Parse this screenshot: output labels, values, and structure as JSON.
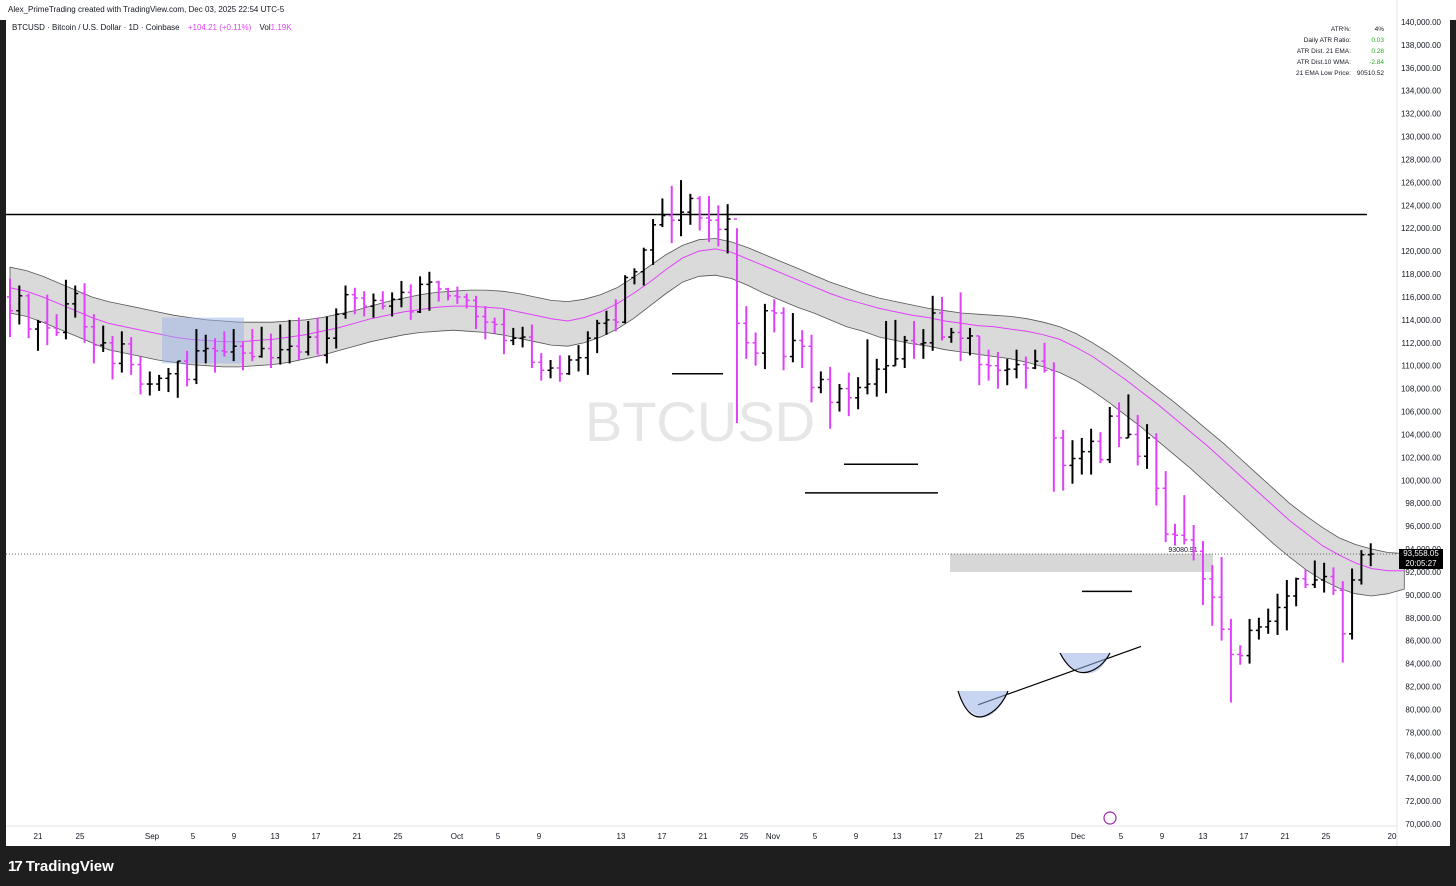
{
  "header": {
    "attribution": "Alex_PrimeTrading created with TradingView.com, Dec 03, 2025 22:54 UTC-5"
  },
  "legend": {
    "symbol_line": "BTCUSD · Bitcoin / U.S. Dollar · 1D · Coinbase",
    "change": "+104.21 (+0.11%)",
    "vol_label": "Vol",
    "vol_value": "1.19K"
  },
  "watermark": "BTCUSD",
  "atr_table": [
    {
      "label": "ATR%:",
      "value": "4%",
      "color": "#131722"
    },
    {
      "label": "Daily ATR Ratio:",
      "value": "0.03",
      "color": "#22ab22"
    },
    {
      "label": "ATR Dist. 21 EMA:",
      "value": "0.28",
      "color": "#22ab22"
    },
    {
      "label": "ATR Dist.10 WMA:",
      "value": "-2.84",
      "color": "#22ab22"
    },
    {
      "label": "21 EMA Low Price:",
      "value": "90510.52",
      "color": "#131722"
    }
  ],
  "price_tags": {
    "last_price": "93,558.05",
    "countdown": "20:05:27",
    "level_label": "93080.91"
  },
  "footer": {
    "brand": "TradingView",
    "brand_mark": "17"
  },
  "colors": {
    "bull": "#000000",
    "bear": "#e040fb",
    "band": "#c8c8c8",
    "ema": "#e040fb",
    "box": "#9bb3e8"
  },
  "chart_data": {
    "type": "ohlc",
    "y_axis": {
      "ticks": [
        "140,000.00",
        "138,000.00",
        "136,000.00",
        "134,000.00",
        "132,000.00",
        "130,000.00",
        "128,000.00",
        "126,000.00",
        "124,000.00",
        "122,000.00",
        "120,000.00",
        "118,000.00",
        "116,000.00",
        "114,000.00",
        "112,000.00",
        "110,000.00",
        "108,000.00",
        "106,000.00",
        "104,000.00",
        "102,000.00",
        "100,000.00",
        "98,000.00",
        "96,000.00",
        "94,000.00",
        "92,000.00",
        "90,000.00",
        "88,000.00",
        "86,000.00",
        "84,000.00",
        "82,000.00",
        "80,000.00",
        "78,000.00",
        "76,000.00",
        "74,000.00",
        "72,000.00",
        "70,000.00"
      ],
      "ylim": [
        70000,
        140000
      ]
    },
    "x_axis": {
      "labels": [
        "21",
        "25",
        "Sep",
        "5",
        "9",
        "13",
        "17",
        "21",
        "25",
        "Oct",
        "5",
        "9",
        "13",
        "17",
        "21",
        "25",
        "Nov",
        "5",
        "9",
        "13",
        "17",
        "21",
        "25",
        "Dec",
        "5",
        "9",
        "13",
        "17",
        "21",
        "25",
        "20"
      ]
    },
    "bars": [
      [
        116000,
        117600,
        112500,
        114800
      ],
      [
        114800,
        117000,
        113600,
        116100
      ],
      [
        116100,
        116300,
        112400,
        113200
      ],
      [
        113200,
        114000,
        111300,
        113800
      ],
      [
        113800,
        116200,
        111800,
        113300
      ],
      [
        113300,
        114500,
        112600,
        112900
      ],
      [
        112900,
        117500,
        112300,
        115400
      ],
      [
        115400,
        117000,
        114200,
        116300
      ],
      [
        116300,
        117200,
        112000,
        113400
      ],
      [
        113400,
        114500,
        110200,
        111800
      ],
      [
        111800,
        113500,
        111200,
        112000
      ],
      [
        112000,
        112600,
        108800,
        110200
      ],
      [
        110200,
        113000,
        109400,
        111900
      ],
      [
        111900,
        112500,
        109200,
        110100
      ],
      [
        110100,
        110800,
        107500,
        108400
      ],
      [
        108400,
        109500,
        107400,
        108400
      ],
      [
        108400,
        109200,
        107800,
        108900
      ],
      [
        108900,
        109800,
        107700,
        109300
      ],
      [
        109300,
        110400,
        107200,
        110400
      ],
      [
        110400,
        111300,
        108200,
        108800
      ],
      [
        108800,
        113200,
        108400,
        111300
      ],
      [
        111300,
        112700,
        110200,
        111500
      ],
      [
        111500,
        112400,
        109400,
        111300
      ],
      [
        111300,
        113000,
        110800,
        111200
      ],
      [
        111200,
        113200,
        110400,
        111700
      ],
      [
        111700,
        112100,
        109600,
        111100
      ],
      [
        111100,
        113200,
        110400,
        110800
      ],
      [
        110800,
        113400,
        110700,
        111500
      ],
      [
        111500,
        112800,
        109800,
        110700
      ],
      [
        110700,
        113600,
        110100,
        111400
      ],
      [
        111400,
        114000,
        110200,
        111700
      ],
      [
        111700,
        114200,
        110500,
        111200
      ],
      [
        111200,
        113900,
        110900,
        112500
      ],
      [
        112500,
        114200,
        111000,
        110900
      ],
      [
        110900,
        114300,
        110200,
        112400
      ],
      [
        112400,
        115000,
        111500,
        114500
      ],
      [
        114500,
        117000,
        114100,
        116200
      ],
      [
        116200,
        116800,
        114500,
        115900
      ],
      [
        115900,
        116500,
        114300,
        115200
      ],
      [
        115200,
        116300,
        114200,
        115700
      ],
      [
        115700,
        116500,
        114900,
        115200
      ],
      [
        115200,
        116400,
        114300,
        115800
      ],
      [
        115800,
        117400,
        115100,
        116400
      ],
      [
        116400,
        117100,
        114000,
        114700
      ],
      [
        114700,
        117800,
        114600,
        117100
      ],
      [
        117100,
        118200,
        114800,
        117300
      ],
      [
        117300,
        117400,
        115600,
        116700
      ],
      [
        116700,
        116800,
        115700,
        116100
      ],
      [
        116100,
        116900,
        115400,
        116000
      ],
      [
        116000,
        116300,
        115000,
        115700
      ],
      [
        115700,
        116100,
        113200,
        114300
      ],
      [
        114300,
        115200,
        112300,
        113800
      ],
      [
        113800,
        114200,
        112800,
        113600
      ],
      [
        113600,
        114900,
        111000,
        112200
      ],
      [
        112200,
        113300,
        111800,
        112400
      ],
      [
        112400,
        113400,
        111600,
        112500
      ],
      [
        112500,
        113600,
        109800,
        110300
      ],
      [
        110300,
        111100,
        108700,
        109600
      ],
      [
        109600,
        110500,
        108900,
        109800
      ],
      [
        109800,
        110900,
        108600,
        109300
      ],
      [
        109300,
        110900,
        109200,
        110500
      ],
      [
        110500,
        111800,
        109500,
        110700
      ],
      [
        110700,
        113000,
        109200,
        112400
      ],
      [
        112400,
        114000,
        111100,
        113700
      ],
      [
        113700,
        114800,
        112700,
        114000
      ],
      [
        114000,
        115800,
        113000,
        113800
      ],
      [
        113800,
        117900,
        113700,
        117700
      ],
      [
        117700,
        118500,
        117100,
        118200
      ],
      [
        118200,
        120300,
        117000,
        120100
      ],
      [
        120100,
        122800,
        118800,
        122300
      ],
      [
        122300,
        124600,
        122100,
        123100
      ],
      [
        123100,
        125700,
        120700,
        122700
      ],
      [
        122700,
        126200,
        121300,
        123400
      ],
      [
        123400,
        125000,
        122300,
        124600
      ],
      [
        124600,
        124800,
        121800,
        122900
      ],
      [
        122900,
        124800,
        120800,
        122700
      ],
      [
        122700,
        124000,
        120400,
        121900
      ],
      [
        121900,
        124100,
        119800,
        122800
      ],
      [
        122800,
        122000,
        105000,
        113700
      ],
      [
        113700,
        115200,
        110600,
        112000
      ],
      [
        112000,
        112900,
        110000,
        111100
      ],
      [
        111100,
        115400,
        109700,
        114800
      ],
      [
        114800,
        115800,
        112900,
        114600
      ],
      [
        114600,
        115100,
        109600,
        110800
      ],
      [
        110800,
        114600,
        110300,
        112200
      ],
      [
        112200,
        113100,
        109800,
        111700
      ],
      [
        111700,
        112700,
        106800,
        108100
      ],
      [
        108100,
        109500,
        107600,
        108800
      ],
      [
        108800,
        109900,
        104500,
        106800
      ],
      [
        106800,
        108400,
        106000,
        108000
      ],
      [
        108000,
        109400,
        105600,
        107200
      ],
      [
        107200,
        109000,
        106200,
        108100
      ],
      [
        108100,
        112300,
        107500,
        108400
      ],
      [
        108400,
        110600,
        107300,
        109700
      ],
      [
        109700,
        113900,
        107600,
        110000
      ],
      [
        110000,
        114000,
        110000,
        110600
      ],
      [
        110600,
        112600,
        109800,
        112200
      ],
      [
        112200,
        113900,
        110600,
        111900
      ],
      [
        111900,
        113200,
        110600,
        112000
      ],
      [
        112000,
        116100,
        111300,
        114600
      ],
      [
        114600,
        116000,
        112200,
        112500
      ],
      [
        112500,
        113300,
        112000,
        112900
      ],
      [
        112900,
        116400,
        110400,
        112400
      ],
      [
        112400,
        113300,
        110900,
        112600
      ],
      [
        112600,
        112600,
        108300,
        110100
      ],
      [
        110100,
        111400,
        108700,
        110000
      ],
      [
        110000,
        111200,
        108000,
        109600
      ],
      [
        109600,
        110600,
        108300,
        109700
      ],
      [
        109700,
        111400,
        108900,
        110100
      ],
      [
        110100,
        110800,
        108000,
        109800
      ],
      [
        109800,
        111400,
        109700,
        110400
      ],
      [
        110400,
        112000,
        109400,
        109600
      ],
      [
        109600,
        110300,
        99000,
        103700
      ],
      [
        103700,
        104400,
        99100,
        101300
      ],
      [
        101300,
        103500,
        99700,
        101900
      ],
      [
        101900,
        103700,
        100500,
        102500
      ],
      [
        102500,
        104500,
        100500,
        103400
      ],
      [
        103400,
        104200,
        101500,
        101800
      ],
      [
        101800,
        106400,
        101500,
        105600
      ],
      [
        105600,
        106800,
        102900,
        103700
      ],
      [
        103700,
        107500,
        103700,
        104000
      ],
      [
        104000,
        105700,
        101300,
        102100
      ],
      [
        102100,
        104900,
        101000,
        103700
      ],
      [
        103700,
        104100,
        97800,
        99300
      ],
      [
        99300,
        100800,
        94600,
        95300
      ],
      [
        95300,
        96200,
        94300,
        95200
      ],
      [
        95200,
        98700,
        94400,
        94800
      ],
      [
        94800,
        96100,
        93000,
        93800
      ],
      [
        93800,
        94700,
        89100,
        91400
      ],
      [
        91400,
        92600,
        87300,
        89800
      ],
      [
        89800,
        93300,
        86000,
        87000
      ],
      [
        87000,
        87900,
        80600,
        84800
      ],
      [
        84800,
        85600,
        83900,
        84700
      ],
      [
        84700,
        87900,
        84000,
        86900
      ],
      [
        86900,
        88000,
        86100,
        87200
      ],
      [
        87200,
        88800,
        86600,
        87700
      ],
      [
        87700,
        90100,
        86500,
        88900
      ],
      [
        88900,
        91300,
        86900,
        89900
      ],
      [
        89900,
        91500,
        89000,
        91400
      ],
      [
        91400,
        92200,
        90600,
        90900
      ],
      [
        90900,
        93000,
        90600,
        91300
      ],
      [
        91300,
        92800,
        90200,
        91600
      ],
      [
        91600,
        92400,
        90000,
        90400
      ],
      [
        90400,
        91200,
        84100,
        86600
      ],
      [
        86600,
        92300,
        86100,
        91300
      ],
      [
        91300,
        93900,
        90900,
        93500
      ],
      [
        93500,
        94500,
        92500,
        93560
      ]
    ],
    "band_upper": [
      118600,
      118300,
      117800,
      117200,
      116600,
      116000,
      115600,
      115300,
      115000,
      114700,
      114400,
      114200,
      114000,
      113900,
      113800,
      113800,
      113800,
      113900,
      114000,
      114200,
      114500,
      114800,
      115200,
      115600,
      115900,
      116200,
      116400,
      116500,
      116600,
      116600,
      116500,
      116300,
      116000,
      115700,
      115600,
      115800,
      116200,
      116800,
      117700,
      118700,
      119700,
      120500,
      121000,
      121100,
      120800,
      120300,
      119700,
      119100,
      118500,
      117900,
      117300,
      116800,
      116300,
      115900,
      115600,
      115300,
      115000,
      114800,
      114600,
      114500,
      114400,
      114300,
      114100,
      113800,
      113400,
      112800,
      112000,
      111100,
      110100,
      109000,
      107900,
      106800,
      105600,
      104400,
      103200,
      101900,
      100600,
      99300,
      98000,
      96900,
      95900,
      95000,
      94400,
      94000,
      93700,
      93600
    ],
    "band_lower": [
      114600,
      114300,
      113800,
      113200,
      112600,
      112000,
      111400,
      111100,
      110800,
      110500,
      110300,
      110100,
      110000,
      109900,
      109900,
      110000,
      110100,
      110300,
      110600,
      110900,
      111300,
      111700,
      112100,
      112400,
      112700,
      112900,
      113000,
      113100,
      113000,
      112900,
      112700,
      112400,
      112100,
      111800,
      111700,
      112000,
      112500,
      113200,
      114100,
      115200,
      116300,
      117300,
      117800,
      117900,
      117600,
      117000,
      116300,
      115700,
      115100,
      114600,
      114000,
      113400,
      113000,
      112500,
      112200,
      111900,
      111700,
      111400,
      111200,
      111000,
      110800,
      110600,
      110300,
      109900,
      109400,
      108700,
      107800,
      106800,
      105700,
      104600,
      103400,
      102200,
      101000,
      99700,
      98400,
      97100,
      95800,
      94500,
      93300,
      92200,
      91300,
      90600,
      90100,
      89900,
      90100,
      90500
    ],
    "ema": [
      116800,
      116500,
      116000,
      115400,
      114800,
      114200,
      113700,
      113400,
      113100,
      112800,
      112500,
      112300,
      112200,
      112100,
      112100,
      112200,
      112300,
      112500,
      112700,
      113000,
      113300,
      113700,
      114100,
      114400,
      114700,
      114900,
      115100,
      115200,
      115200,
      115100,
      115000,
      114700,
      114400,
      114100,
      113900,
      114200,
      114700,
      115400,
      116300,
      117300,
      118400,
      119400,
      120000,
      120200,
      119900,
      119300,
      118700,
      118100,
      117500,
      116900,
      116300,
      115800,
      115400,
      115000,
      114700,
      114400,
      114200,
      113900,
      113700,
      113500,
      113400,
      113200,
      113000,
      112700,
      112300,
      111600,
      110800,
      109800,
      108800,
      107700,
      106600,
      105400,
      104200,
      103000,
      101700,
      100400,
      99100,
      97800,
      96500,
      95400,
      94300,
      93500,
      92800,
      92300,
      92100,
      92100
    ],
    "annotations": {
      "resistance": 123200,
      "level_label_value": 93080.91
    }
  }
}
